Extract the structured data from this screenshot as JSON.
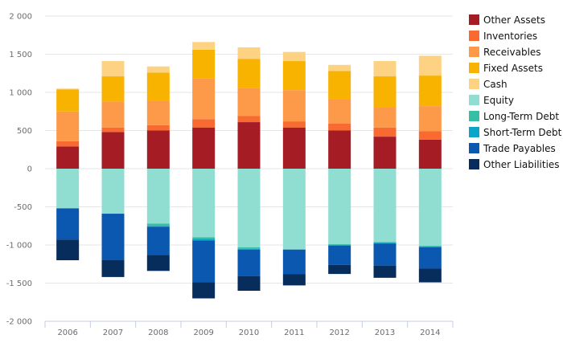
{
  "chart_data": {
    "type": "bar",
    "stacked": true,
    "categories": [
      "2006",
      "2007",
      "2008",
      "2009",
      "2010",
      "2011",
      "2012",
      "2013",
      "2014"
    ],
    "ylim": [
      -2000,
      2000
    ],
    "yticks": [
      2000,
      1500,
      1000,
      500,
      0,
      -500,
      -1000,
      -1500,
      -2000
    ],
    "ytick_labels": [
      "2 000",
      "1 500",
      "1 000",
      "500",
      "0",
      "-500",
      "-1 000",
      "-1 500",
      "-2 000"
    ],
    "grid": true,
    "legend_position": "right",
    "series": [
      {
        "name": "Other Assets",
        "color": "#a51c24",
        "values": [
          290,
          480,
          500,
          540,
          610,
          540,
          500,
          420,
          380
        ]
      },
      {
        "name": "Inventories",
        "color": "#f86a30",
        "values": [
          70,
          60,
          70,
          110,
          80,
          80,
          90,
          120,
          110
        ]
      },
      {
        "name": "Receivables",
        "color": "#fd9a4a",
        "values": [
          390,
          340,
          320,
          530,
          370,
          410,
          320,
          260,
          330
        ]
      },
      {
        "name": "Fixed Assets",
        "color": "#f8b200",
        "values": [
          290,
          330,
          370,
          380,
          380,
          380,
          370,
          410,
          400
        ]
      },
      {
        "name": "Cash",
        "color": "#fdd383",
        "values": [
          10,
          200,
          80,
          100,
          150,
          120,
          80,
          200,
          260
        ]
      },
      {
        "name": "Equity",
        "color": "#8fded1",
        "values": [
          -520,
          -590,
          -720,
          -900,
          -1030,
          -1060,
          -990,
          -960,
          -1010
        ]
      },
      {
        "name": "Long-Term Debt",
        "color": "#36bfa5",
        "values": [
          0,
          0,
          -30,
          -20,
          -20,
          0,
          -10,
          -10,
          -10
        ]
      },
      {
        "name": "Short-Term Debt",
        "color": "#0aa5c8",
        "values": [
          0,
          0,
          -10,
          -20,
          -10,
          0,
          -10,
          -10,
          -10
        ]
      },
      {
        "name": "Trade Payables",
        "color": "#0a58b0",
        "values": [
          -410,
          -610,
          -370,
          -550,
          -350,
          -320,
          -250,
          -290,
          -280
        ]
      },
      {
        "name": "Other Liabilities",
        "color": "#062d5c",
        "values": [
          -270,
          -220,
          -210,
          -210,
          -190,
          -150,
          -120,
          -160,
          -180
        ]
      }
    ]
  }
}
